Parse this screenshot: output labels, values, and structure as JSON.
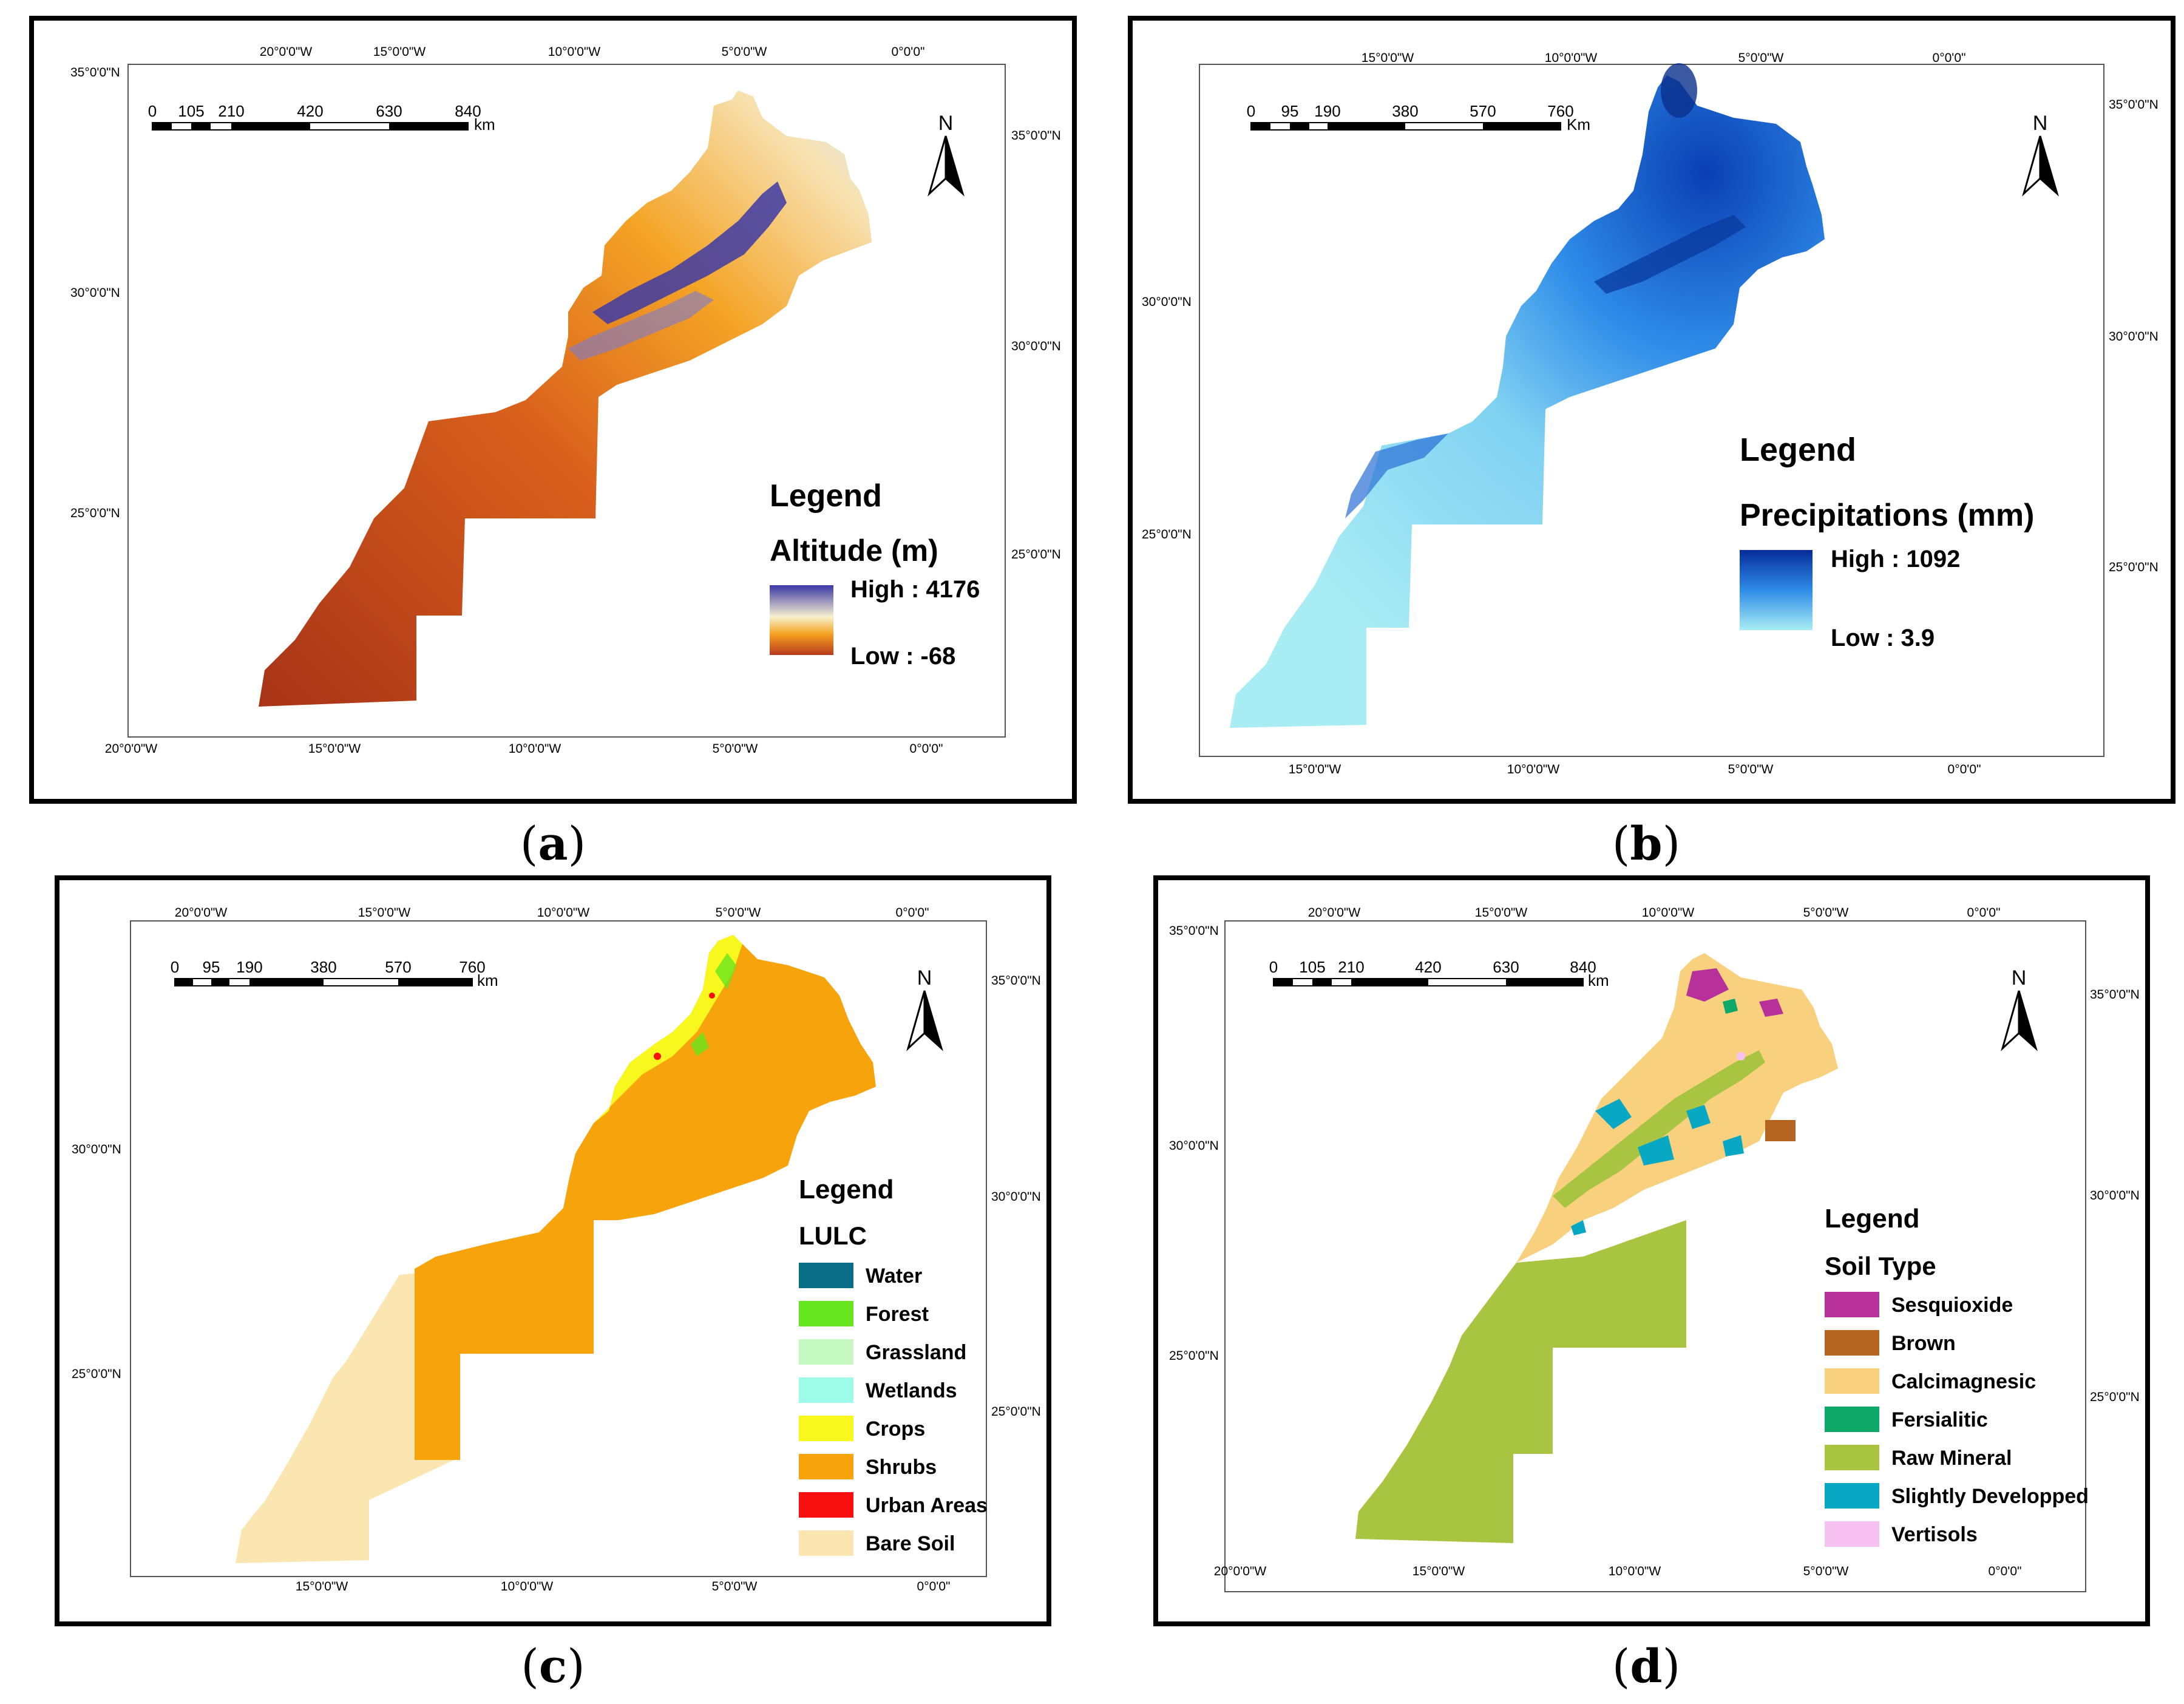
{
  "panels": [
    {
      "id": "a",
      "caption_letter": "a",
      "top_lon_labels": [
        "20°0'0\"W",
        "15°0'0\"W",
        "10°0'0\"W",
        "5°0'0\"W",
        "0°0'0\""
      ],
      "bottom_lon_labels": [
        "20°0'0\"W",
        "15°0'0\"W",
        "10°0'0\"W",
        "5°0'0\"W",
        "0°0'0\""
      ],
      "left_lat_labels": [
        "35°0'0\"N",
        "30°0'0\"N",
        "25°0'0\"N"
      ],
      "right_lat_labels": [
        "35°0'0\"N",
        "30°0'0\"N",
        "25°0'0\"N"
      ],
      "scale_labels": [
        "0",
        "105",
        "210",
        "420",
        "630",
        "840"
      ],
      "scale_unit": "km",
      "north": "N",
      "legend_title": "Legend",
      "legend_subtitle": "Altitude (m)",
      "high_label": "High : 4176",
      "low_label": "Low : -68",
      "colors": {
        "high": "#3b37a8",
        "mid": "#f7f1cf",
        "mid2": "#f5a21e",
        "low": "#b83a1e"
      }
    },
    {
      "id": "b",
      "caption_letter": "b",
      "top_lon_labels": [
        "15°0'0\"W",
        "10°0'0\"W",
        "5°0'0\"W",
        "0°0'0\""
      ],
      "bottom_lon_labels": [
        "15°0'0\"W",
        "10°0'0\"W",
        "5°0'0\"W",
        "0°0'0\""
      ],
      "left_lat_labels": [
        "30°0'0\"N",
        "25°0'0\"N"
      ],
      "right_lat_labels": [
        "35°0'0\"N",
        "30°0'0\"N",
        "25°0'0\"N"
      ],
      "scale_labels": [
        "0",
        "95",
        "190",
        "380",
        "570",
        "760"
      ],
      "scale_unit": "Km",
      "north": "N",
      "legend_title": "Legend",
      "legend_subtitle": "Precipitations (mm)",
      "high_label": "High : 1092",
      "low_label": "Low : 3.9",
      "colors": {
        "high": "#062c9a",
        "mid": "#2e8be8",
        "low": "#a8ecf4"
      }
    },
    {
      "id": "c",
      "caption_letter": "c",
      "top_lon_labels": [
        "20°0'0\"W",
        "15°0'0\"W",
        "10°0'0\"W",
        "5°0'0\"W",
        "0°0'0\""
      ],
      "bottom_lon_labels": [
        "15°0'0\"W",
        "10°0'0\"W",
        "5°0'0\"W",
        "0°0'0\""
      ],
      "left_lat_labels": [
        "30°0'0\"N",
        "25°0'0\"N"
      ],
      "right_lat_labels": [
        "35°0'0\"N",
        "30°0'0\"N",
        "25°0'0\"N"
      ],
      "scale_labels": [
        "0",
        "95",
        "190",
        "380",
        "570",
        "760"
      ],
      "scale_unit": "km",
      "north": "N",
      "legend_title": "Legend",
      "legend_subtitle": "LULC",
      "classes": [
        {
          "label": "Water",
          "color": "#0a6f86"
        },
        {
          "label": "Forest",
          "color": "#66e61e"
        },
        {
          "label": "Grassland",
          "color": "#c6f8c2"
        },
        {
          "label": "Wetlands",
          "color": "#9cfce8"
        },
        {
          "label": "Crops",
          "color": "#f8f81e"
        },
        {
          "label": "Shrubs",
          "color": "#f7a30c"
        },
        {
          "label": "Urban Areas",
          "color": "#f81010"
        },
        {
          "label": "Bare Soil",
          "color": "#fbe6b2"
        }
      ]
    },
    {
      "id": "d",
      "caption_letter": "d",
      "top_lon_labels": [
        "20°0'0\"W",
        "15°0'0\"W",
        "10°0'0\"W",
        "5°0'0\"W",
        "0°0'0\""
      ],
      "bottom_lon_labels": [
        "20°0'0\"W",
        "15°0'0\"W",
        "10°0'0\"W",
        "5°0'0\"W",
        "0°0'0\""
      ],
      "left_lat_labels": [
        "35°0'0\"N",
        "30°0'0\"N",
        "25°0'0\"N"
      ],
      "right_lat_labels": [
        "35°0'0\"N",
        "30°0'0\"N",
        "25°0'0\"N"
      ],
      "scale_labels": [
        "0",
        "105",
        "210",
        "420",
        "630",
        "840"
      ],
      "scale_unit": "km",
      "north": "N",
      "legend_title": "Legend",
      "legend_subtitle": "Soil Type",
      "classes": [
        {
          "label": "Sesquioxide",
          "color": "#b8309a"
        },
        {
          "label": "Brown",
          "color": "#b4641e"
        },
        {
          "label": "Calcimagnesic",
          "color": "#f9d17e"
        },
        {
          "label": "Fersialitic",
          "color": "#0ea868"
        },
        {
          "label": "Raw Mineral",
          "color": "#a8c440"
        },
        {
          "label": "Slightly Developped",
          "color": "#08a8c4"
        },
        {
          "label": "Vertisols",
          "color": "#f5c2f2"
        }
      ]
    }
  ]
}
